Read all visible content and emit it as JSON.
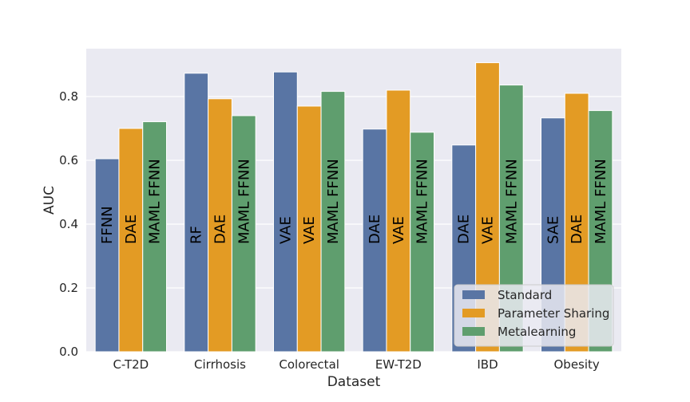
{
  "chart_data": {
    "type": "bar",
    "xlabel": "Dataset",
    "ylabel": "AUC",
    "ylim": [
      0,
      0.95
    ],
    "yticks": [
      "0.0",
      "0.2",
      "0.4",
      "0.6",
      "0.8"
    ],
    "grid": true,
    "legend_position": "bottom-right",
    "categories": [
      "C-T2D",
      "Cirrhosis",
      "Colorectal",
      "EW-T2D",
      "IBD",
      "Obesity"
    ],
    "series": [
      {
        "name": "Standard",
        "color": "#5975a4",
        "values": [
          0.605,
          0.873,
          0.877,
          0.698,
          0.648,
          0.733
        ],
        "bar_labels": [
          "FFNN",
          "RF",
          "VAE",
          "DAE",
          "DAE",
          "SAE"
        ]
      },
      {
        "name": "Parameter Sharing",
        "color": "#e39b24",
        "values": [
          0.7,
          0.793,
          0.77,
          0.82,
          0.906,
          0.81
        ],
        "bar_labels": [
          "DAE",
          "DAE",
          "VAE",
          "VAE",
          "VAE",
          "DAE"
        ]
      },
      {
        "name": "Metalearning",
        "color": "#5f9e6e",
        "values": [
          0.721,
          0.74,
          0.816,
          0.688,
          0.836,
          0.756
        ],
        "bar_labels": [
          "MAML FFNN",
          "MAML FFNN",
          "MAML FFNN",
          "MAML FFNN",
          "MAML FFNN",
          "MAML FFNN"
        ]
      }
    ]
  }
}
